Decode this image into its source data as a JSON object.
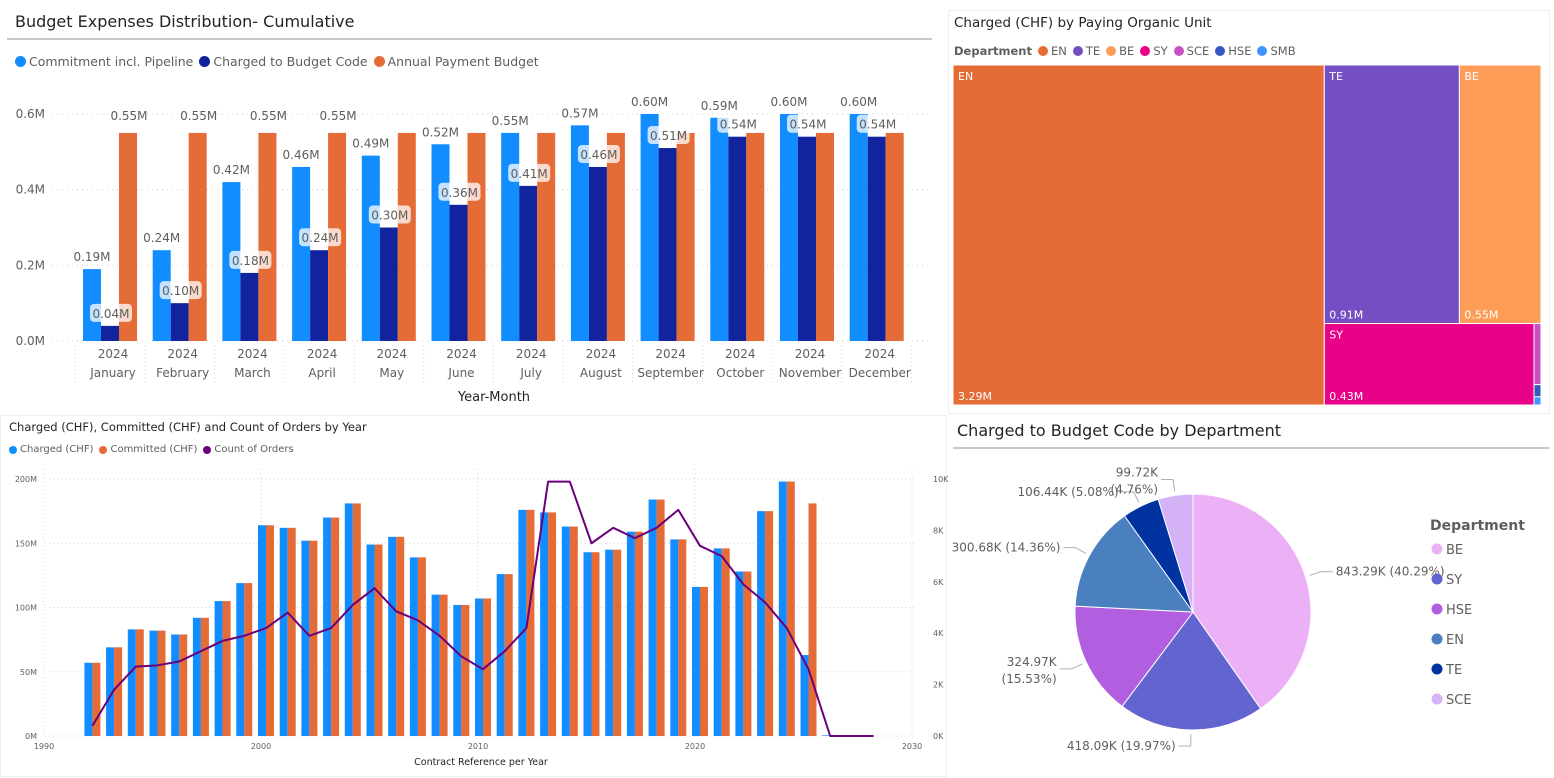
{
  "chart_data": [
    {
      "type": "bar",
      "title": "Budget Expenses Distribution- Cumulative",
      "xlabel": "Year-Month",
      "ylabel": "",
      "ylim": [
        0,
        0.6
      ],
      "yticks": [
        "0.0M",
        "0.2M",
        "0.4M",
        "0.6M"
      ],
      "grid": true,
      "legend_position": "top-left",
      "categories_year": [
        "2024",
        "2024",
        "2024",
        "2024",
        "2024",
        "2024",
        "2024",
        "2024",
        "2024",
        "2024",
        "2024",
        "2024"
      ],
      "categories": [
        "January",
        "February",
        "March",
        "April",
        "May",
        "June",
        "July",
        "August",
        "September",
        "October",
        "November",
        "December"
      ],
      "series": [
        {
          "name": "Commitment incl. Pipeline",
          "color": "#118dff",
          "values": [
            0.19,
            0.24,
            0.42,
            0.46,
            0.49,
            0.52,
            0.55,
            0.57,
            0.6,
            0.59,
            0.6,
            0.6
          ],
          "labels": [
            "0.19M",
            "0.24M",
            "0.42M",
            "0.46M",
            "0.49M",
            "0.52M",
            "0.55M",
            "0.57M",
            "0.60M",
            "0.59M",
            "0.60M",
            "0.60M"
          ]
        },
        {
          "name": "Charged to Budget Code",
          "color": "#12239e",
          "values": [
            0.04,
            0.1,
            0.18,
            0.24,
            0.3,
            0.36,
            0.41,
            0.46,
            0.51,
            0.54,
            0.54,
            0.54
          ],
          "labels": [
            "0.04M",
            "0.10M",
            "0.18M",
            "0.24M",
            "0.30M",
            "0.36M",
            "0.41M",
            "0.46M",
            "0.51M",
            "0.54M",
            "0.54M",
            "0.54M"
          ]
        },
        {
          "name": "Annual Payment Budget",
          "color": "#e66c37",
          "values": [
            0.55,
            0.55,
            0.55,
            0.55,
            0.55,
            0.55,
            0.55,
            0.55,
            0.55,
            0.55,
            0.55,
            0.55
          ],
          "labels": [
            "0.55M",
            "0.55M",
            "0.55M",
            "0.55M",
            null,
            null,
            null,
            null,
            null,
            null,
            null,
            null
          ]
        }
      ]
    },
    {
      "type": "treemap",
      "title": "Charged (CHF) by Paying Organic Unit",
      "legend_title": "Department",
      "legend_position": "top-left",
      "items": [
        {
          "name": "EN",
          "value": 3.29,
          "label": "3.29M",
          "color": "#e66c37"
        },
        {
          "name": "TE",
          "value": 0.91,
          "label": "0.91M",
          "color": "#744ec2"
        },
        {
          "name": "BE",
          "value": 0.55,
          "label": "0.55M",
          "color": "#fd9d58"
        },
        {
          "name": "SY",
          "value": 0.43,
          "label": "0.43M",
          "color": "#ea018a"
        },
        {
          "name": "SCE",
          "value": null,
          "label": null,
          "color": "#c94fc4"
        },
        {
          "name": "HSE",
          "value": null,
          "label": null,
          "color": "#3457c2"
        },
        {
          "name": "SMB",
          "value": null,
          "label": null,
          "color": "#3e95ff"
        }
      ]
    },
    {
      "type": "bar+line",
      "title": "Charged (CHF), Committed (CHF) and Count of Orders by Year",
      "xlabel": "Contract Reference per Year",
      "xlim": [
        1990,
        2030
      ],
      "xticks": [
        "1990",
        "2000",
        "2010",
        "2020",
        "2030"
      ],
      "ylim": [
        0,
        200
      ],
      "yticks": [
        "0M",
        "50M",
        "100M",
        "150M",
        "200M"
      ],
      "y2lim": [
        0,
        10
      ],
      "y2ticks": [
        "0K",
        "2K",
        "4K",
        "6K",
        "8K",
        "10K"
      ],
      "grid": true,
      "legend_position": "top-left",
      "x": [
        1992,
        1993,
        1994,
        1995,
        1996,
        1997,
        1998,
        1999,
        2000,
        2001,
        2002,
        2003,
        2004,
        2005,
        2006,
        2007,
        2008,
        2009,
        2010,
        2011,
        2012,
        2013,
        2014,
        2015,
        2016,
        2017,
        2018,
        2019,
        2020,
        2021,
        2022,
        2023,
        2024,
        2025,
        2026
      ],
      "series": [
        {
          "name": "Charged (CHF)",
          "color": "#118dff",
          "unit": "M",
          "values": [
            57,
            69,
            83,
            82,
            79,
            92,
            105,
            119,
            164,
            162,
            152,
            170,
            181,
            149,
            155,
            139,
            110,
            102,
            107,
            126,
            176,
            174,
            163,
            143,
            145,
            159,
            184,
            153,
            116,
            146,
            128,
            175,
            198,
            63,
            0.5
          ]
        },
        {
          "name": "Committed (CHF)",
          "color": "#e66c37",
          "unit": "M",
          "values": [
            57,
            69,
            83,
            82,
            79,
            92,
            105,
            119,
            164,
            162,
            152,
            170,
            181,
            149,
            155,
            139,
            110,
            102,
            107,
            126,
            176,
            174,
            163,
            143,
            145,
            159,
            184,
            153,
            116,
            146,
            128,
            175,
            198,
            181,
            0
          ]
        },
        {
          "name": "Count of Orders",
          "color": "#6b007b",
          "unit": "K",
          "axis": "right",
          "x": [
            1992,
            1993,
            1994,
            1995,
            1996,
            1997,
            1998,
            1999,
            2000,
            2001,
            2002,
            2003,
            2004,
            2005,
            2006,
            2007,
            2008,
            2009,
            2010,
            2011,
            2012,
            2013,
            2014,
            2015,
            2016,
            2017,
            2018,
            2019,
            2020,
            2021,
            2022,
            2023,
            2024,
            2025,
            2026,
            2027,
            2028
          ],
          "values": [
            0.4,
            1.8,
            2.7,
            2.75,
            2.9,
            3.3,
            3.7,
            3.9,
            4.2,
            4.8,
            3.9,
            4.2,
            5.1,
            5.75,
            4.85,
            4.5,
            3.9,
            3.1,
            2.6,
            3.3,
            4.2,
            9.9,
            9.9,
            7.5,
            8.1,
            7.7,
            8.1,
            8.8,
            7.4,
            7.0,
            5.9,
            5.2,
            4.2,
            2.6,
            0,
            0,
            0
          ]
        }
      ]
    },
    {
      "type": "pie",
      "title": "Charged to Budget Code by Department",
      "legend_title": "Department",
      "legend_position": "right",
      "slices": [
        {
          "name": "BE",
          "value": 843.29,
          "value_label": "843.29K",
          "pct_label": "(40.29%)",
          "color": "#ebb0f5"
        },
        {
          "name": "SY",
          "value": 418.09,
          "value_label": "418.09K",
          "pct_label": "(19.97%)",
          "color": "#6264d0"
        },
        {
          "name": "HSE",
          "value": 324.97,
          "value_label": "324.97K",
          "pct_label": "(15.53%)",
          "color": "#b25ee0"
        },
        {
          "name": "EN",
          "value": 300.68,
          "value_label": "300.68K",
          "pct_label": "(14.36%)",
          "color": "#4a7fc0"
        },
        {
          "name": "TE",
          "value": 106.44,
          "value_label": "106.44K",
          "pct_label": "(5.08%)",
          "color": "#0032a0"
        },
        {
          "name": "SCE",
          "value": 99.72,
          "value_label": "99.72K",
          "pct_label": "(4.76%)",
          "color": "#d3b2f5"
        }
      ]
    }
  ]
}
